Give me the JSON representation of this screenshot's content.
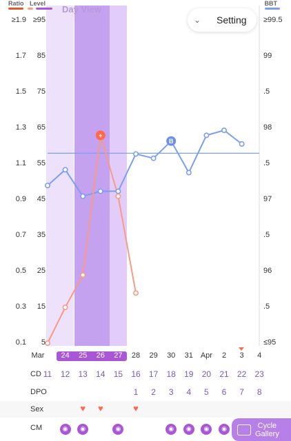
{
  "legend": {
    "ratio": "Ratio",
    "level": "Level",
    "bbt": "BBT"
  },
  "colors": {
    "ratio_bar": "#e4572e",
    "level_bar": "#a957d6",
    "bbt_line": "#7b9ef0",
    "lh_line": "#f89a84",
    "fertile_dark": "#c5a2f0",
    "fertile_light": "#ede1fc"
  },
  "header": {
    "day_view": "Day View",
    "setting_label": "Setting",
    "setting_icon": "chevron-down-icon"
  },
  "axes": {
    "ratio_ticks": [
      "≥1.9",
      "1.7",
      "1.5",
      "1.3",
      "1.1",
      "0.9",
      "0.7",
      "0.5",
      "0.3",
      "0.1"
    ],
    "level_ticks": [
      "≥95",
      "85",
      "75",
      "65",
      "55",
      "45",
      "35",
      "25",
      "15",
      "5"
    ],
    "bbt_ticks": [
      "≥99.5",
      "99",
      ".5",
      "98",
      ".5",
      "97",
      ".5",
      "96",
      ".5",
      "≤95"
    ]
  },
  "dates": {
    "month_label": "Mar",
    "days": [
      "24",
      "25",
      "26",
      "27",
      "28",
      "29",
      "30",
      "31",
      "Apr",
      "2",
      "3",
      "4"
    ],
    "highlighted": [
      "24",
      "25",
      "26",
      "27"
    ]
  },
  "rows": {
    "cd": {
      "label": "CD",
      "values": [
        "11",
        "12",
        "13",
        "14",
        "15",
        "16",
        "17",
        "18",
        "19",
        "20",
        "21",
        "22",
        "23"
      ]
    },
    "dpo": {
      "label": "DPO",
      "values": [
        "1",
        "2",
        "3",
        "4",
        "5",
        "6",
        "7",
        "8"
      ]
    },
    "sex": {
      "label": "Sex",
      "icon": "heart-icon"
    },
    "cm": {
      "label": "CM",
      "icon": "cervical-mucus-icon"
    }
  },
  "chart_data": {
    "type": "line",
    "x": [
      "11",
      "12",
      "13",
      "14",
      "15",
      "16",
      "17",
      "18",
      "19",
      "20",
      "21",
      "22",
      "23"
    ],
    "series": [
      {
        "name": "BBT",
        "axis": "right",
        "values": [
          97.2,
          97.42,
          97.05,
          97.12,
          97.12,
          97.64,
          97.58,
          97.82,
          97.38,
          97.9,
          97.97,
          97.78,
          null
        ]
      },
      {
        "name": "LH Level",
        "axis": "left",
        "values": [
          5,
          15,
          24,
          63,
          46,
          19,
          null,
          null,
          null,
          null,
          null,
          null,
          null
        ]
      }
    ],
    "coverline": 97.65,
    "markers": [
      {
        "series": "LH Level",
        "x": "14",
        "label": "+"
      },
      {
        "series": "BBT",
        "x": "18",
        "label": "B"
      }
    ],
    "level_range": [
      5,
      95
    ],
    "bbt_range": [
      95,
      99.5
    ]
  },
  "footer": {
    "gallery_label_1": "Cycle",
    "gallery_label_2": "Gallery"
  }
}
